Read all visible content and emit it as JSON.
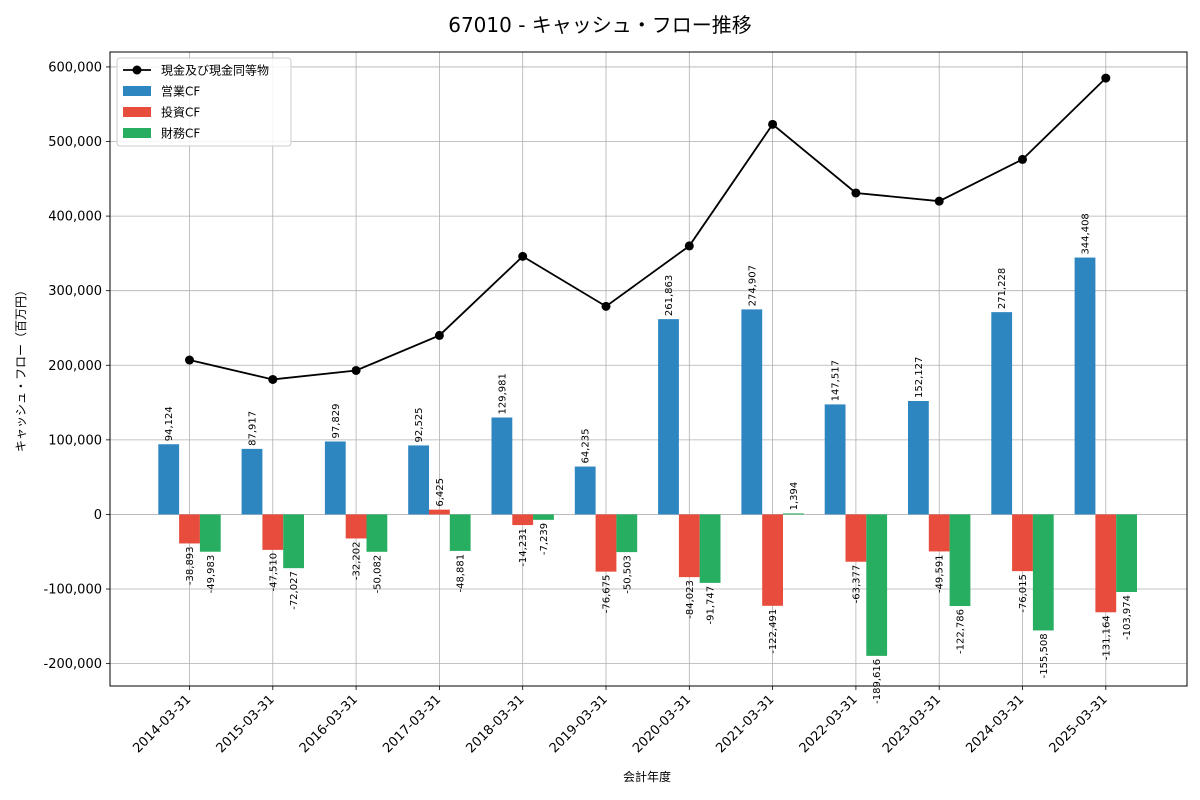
{
  "chart_data": {
    "type": "bar",
    "title": "67010 - キャッシュ・フロー推移",
    "xlabel": "会計年度",
    "ylabel": "キャッシュ・フロー（百万円）",
    "ylim": [
      -230000,
      620000
    ],
    "yticks": [
      -200000,
      -100000,
      0,
      100000,
      200000,
      300000,
      400000,
      500000,
      600000
    ],
    "ytick_labels": [
      "-200,000",
      "-100,000",
      "0",
      "100,000",
      "200,000",
      "300,000",
      "400,000",
      "500,000",
      "600,000"
    ],
    "grid": true,
    "legend_position": "top-left",
    "categories": [
      "2014-03-31",
      "2015-03-31",
      "2016-03-31",
      "2017-03-31",
      "2018-03-31",
      "2019-03-31",
      "2020-03-31",
      "2021-03-31",
      "2022-03-31",
      "2023-03-31",
      "2024-03-31",
      "2025-03-31"
    ],
    "line_series": {
      "name": "現金及び現金同等物",
      "color": "#000000",
      "values": [
        207000,
        181000,
        193000,
        240000,
        346000,
        279000,
        360000,
        523000,
        431000,
        420000,
        476000,
        585000
      ]
    },
    "series": [
      {
        "name": "営業CF",
        "color": "#2e86c1",
        "values": [
          94124,
          87917,
          97829,
          92525,
          129981,
          64235,
          261863,
          274907,
          147517,
          152127,
          271228,
          344408
        ],
        "labels": [
          "94,124",
          "87,917",
          "97,829",
          "92,525",
          "129,981",
          "64,235",
          "261,863",
          "274,907",
          "147,517",
          "152,127",
          "271,228",
          "344,408"
        ]
      },
      {
        "name": "投資CF",
        "color": "#e74c3c",
        "values": [
          -38893,
          -47510,
          -32202,
          6425,
          -14231,
          -76675,
          -84023,
          -122491,
          -63377,
          -49591,
          -76015,
          -131164
        ],
        "labels": [
          "-38,893",
          "-47,510",
          "-32,202",
          "6,425",
          "-14,231",
          "-76,675",
          "-84,023",
          "-122,491",
          "-63,377",
          "-49,591",
          "-76,015",
          "-131,164"
        ]
      },
      {
        "name": "財務CF",
        "color": "#27ae60",
        "values": [
          -49983,
          -72027,
          -50082,
          -48881,
          -7239,
          -50503,
          -91747,
          1394,
          -189616,
          -122786,
          -155508,
          -103974
        ],
        "labels": [
          "-49,983",
          "-72,027",
          "-50,082",
          "-48,881",
          "-7,239",
          "-50,503",
          "-91,747",
          "1,394",
          "-189,616",
          "-122,786",
          "-155,508",
          "-103,974"
        ]
      }
    ]
  }
}
